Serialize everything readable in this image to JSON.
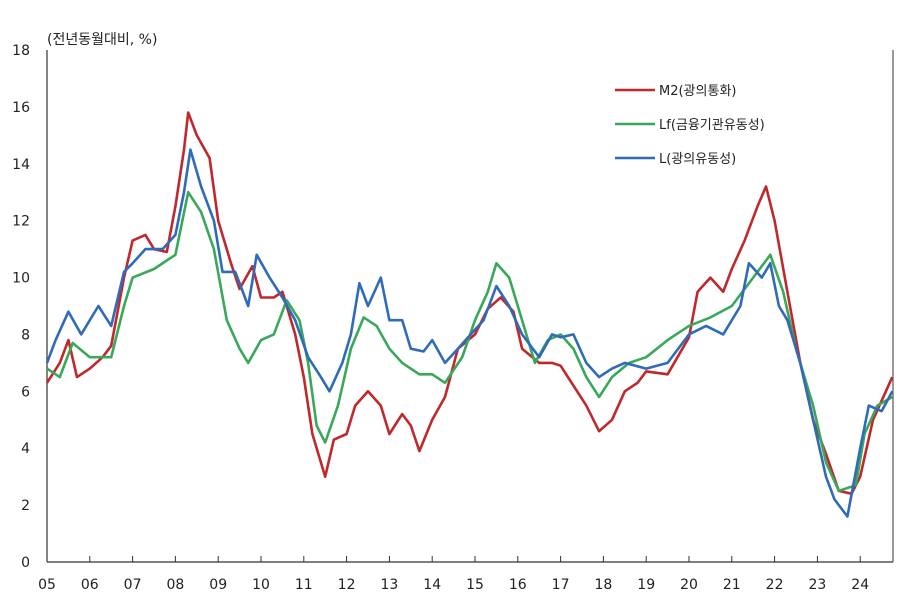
{
  "chart_data": {
    "type": "line",
    "title": "",
    "unit_label": "(전년동월대비, %)",
    "xlabel": "",
    "ylabel": "",
    "ylim": [
      0,
      18
    ],
    "xlim": [
      2005,
      2024.75
    ],
    "yticks": [
      0,
      2,
      4,
      6,
      8,
      10,
      12,
      14,
      16,
      18
    ],
    "xtick_labels": [
      "05",
      "06",
      "07",
      "08",
      "09",
      "10",
      "11",
      "12",
      "13",
      "14",
      "15",
      "16",
      "17",
      "18",
      "19",
      "20",
      "21",
      "22",
      "23",
      "24"
    ],
    "grid": false,
    "legend_position": "top-right",
    "series": [
      {
        "name": "M2(광의통화)",
        "color": "#c0282b",
        "x": [
          2005.0,
          2005.3,
          2005.5,
          2005.7,
          2006.0,
          2006.3,
          2006.5,
          2006.8,
          2007.0,
          2007.3,
          2007.5,
          2007.8,
          2008.0,
          2008.2,
          2008.3,
          2008.5,
          2008.8,
          2009.0,
          2009.3,
          2009.5,
          2009.8,
          2010.0,
          2010.3,
          2010.5,
          2010.8,
          2011.0,
          2011.2,
          2011.5,
          2011.7,
          2012.0,
          2012.2,
          2012.5,
          2012.8,
          2013.0,
          2013.3,
          2013.5,
          2013.7,
          2014.0,
          2014.3,
          2014.6,
          2015.0,
          2015.3,
          2015.6,
          2015.9,
          2016.1,
          2016.5,
          2016.8,
          2017.0,
          2017.3,
          2017.6,
          2017.9,
          2018.2,
          2018.5,
          2018.8,
          2019.0,
          2019.5,
          2020.0,
          2020.2,
          2020.5,
          2020.8,
          2021.0,
          2021.3,
          2021.6,
          2021.8,
          2022.0,
          2022.3,
          2022.6,
          2022.9,
          2023.2,
          2023.5,
          2023.8,
          2024.0,
          2024.3,
          2024.6,
          2024.75
        ],
        "y": [
          6.3,
          7.0,
          7.8,
          6.5,
          6.8,
          7.2,
          7.6,
          10.0,
          11.3,
          11.5,
          11.0,
          10.9,
          12.5,
          14.5,
          15.8,
          15.0,
          14.2,
          12.0,
          10.5,
          9.6,
          10.4,
          9.3,
          9.3,
          9.5,
          8.0,
          6.5,
          4.5,
          3.0,
          4.3,
          4.5,
          5.5,
          6.0,
          5.5,
          4.5,
          5.2,
          4.8,
          3.9,
          5.0,
          5.8,
          7.5,
          8.0,
          8.9,
          9.3,
          8.8,
          7.5,
          7.0,
          7.0,
          6.9,
          6.2,
          5.5,
          4.6,
          5.0,
          6.0,
          6.3,
          6.7,
          6.6,
          7.9,
          9.5,
          10.0,
          9.5,
          10.3,
          11.3,
          12.5,
          13.2,
          12.0,
          9.5,
          7.0,
          5.0,
          3.8,
          2.5,
          2.4,
          3.0,
          5.0,
          6.0,
          6.5
        ]
      },
      {
        "name": "Lf(금융기관유동성)",
        "color": "#3aa85a",
        "x": [
          2005.0,
          2005.3,
          2005.6,
          2006.0,
          2006.5,
          2006.8,
          2007.0,
          2007.5,
          2008.0,
          2008.3,
          2008.6,
          2008.9,
          2009.2,
          2009.5,
          2009.7,
          2010.0,
          2010.3,
          2010.6,
          2010.9,
          2011.1,
          2011.3,
          2011.5,
          2011.8,
          2012.1,
          2012.4,
          2012.7,
          2013.0,
          2013.3,
          2013.7,
          2014.0,
          2014.3,
          2014.7,
          2015.0,
          2015.3,
          2015.5,
          2015.8,
          2016.1,
          2016.4,
          2016.7,
          2017.0,
          2017.3,
          2017.6,
          2017.9,
          2018.2,
          2018.6,
          2019.0,
          2019.5,
          2020.0,
          2020.5,
          2021.0,
          2021.5,
          2021.9,
          2022.2,
          2022.5,
          2022.9,
          2023.2,
          2023.5,
          2023.9,
          2024.1,
          2024.4,
          2024.75
        ],
        "y": [
          6.8,
          6.5,
          7.7,
          7.2,
          7.2,
          9.0,
          10.0,
          10.3,
          10.8,
          13.0,
          12.3,
          11.0,
          8.5,
          7.5,
          7.0,
          7.8,
          8.0,
          9.2,
          8.5,
          7.0,
          4.8,
          4.2,
          5.5,
          7.5,
          8.6,
          8.3,
          7.5,
          7.0,
          6.6,
          6.6,
          6.3,
          7.2,
          8.5,
          9.5,
          10.5,
          10.0,
          8.5,
          7.0,
          7.8,
          8.0,
          7.5,
          6.5,
          5.8,
          6.5,
          7.0,
          7.2,
          7.8,
          8.3,
          8.6,
          9.0,
          10.0,
          10.8,
          9.5,
          7.5,
          5.5,
          3.5,
          2.5,
          2.7,
          4.5,
          5.5,
          5.8
        ]
      },
      {
        "name": "L(광의유동성)",
        "color": "#2f6bb8",
        "x": [
          2005.0,
          2005.2,
          2005.5,
          2005.8,
          2006.2,
          2006.5,
          2006.8,
          2007.0,
          2007.3,
          2007.7,
          2008.0,
          2008.2,
          2008.35,
          2008.6,
          2008.9,
          2009.1,
          2009.4,
          2009.7,
          2009.9,
          2010.2,
          2010.5,
          2010.8,
          2011.1,
          2011.4,
          2011.6,
          2011.9,
          2012.1,
          2012.3,
          2012.5,
          2012.8,
          2013.0,
          2013.3,
          2013.5,
          2013.8,
          2014.0,
          2014.3,
          2014.6,
          2014.9,
          2015.2,
          2015.5,
          2015.8,
          2016.1,
          2016.5,
          2016.8,
          2017.0,
          2017.3,
          2017.6,
          2017.9,
          2018.2,
          2018.5,
          2019.0,
          2019.5,
          2020.0,
          2020.4,
          2020.8,
          2021.2,
          2021.4,
          2021.7,
          2021.9,
          2022.1,
          2022.3,
          2022.6,
          2022.9,
          2023.2,
          2023.4,
          2023.7,
          2024.0,
          2024.2,
          2024.5,
          2024.75
        ],
        "y": [
          7.0,
          7.8,
          8.8,
          8.0,
          9.0,
          8.3,
          10.2,
          10.5,
          11.0,
          11.0,
          11.5,
          13.0,
          14.5,
          13.2,
          12.0,
          10.2,
          10.2,
          9.0,
          10.8,
          10.0,
          9.3,
          8.5,
          7.2,
          6.5,
          6.0,
          7.0,
          8.0,
          9.8,
          9.0,
          10.0,
          8.5,
          8.5,
          7.5,
          7.4,
          7.8,
          7.0,
          7.5,
          8.0,
          8.5,
          9.7,
          9.0,
          8.0,
          7.2,
          8.0,
          7.9,
          8.0,
          7.0,
          6.5,
          6.8,
          7.0,
          6.8,
          7.0,
          8.0,
          8.3,
          8.0,
          9.0,
          10.5,
          10.0,
          10.5,
          9.0,
          8.5,
          7.0,
          5.0,
          3.0,
          2.2,
          1.6,
          4.0,
          5.5,
          5.3,
          6.0
        ]
      }
    ]
  }
}
